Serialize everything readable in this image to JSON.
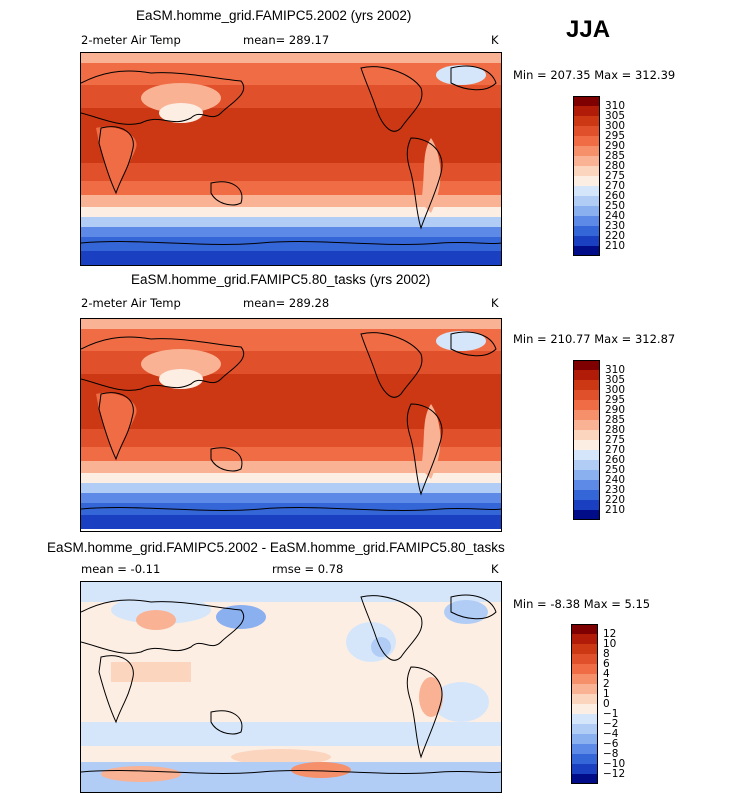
{
  "season": "JJA",
  "chart_data": [
    {
      "type": "heatmap",
      "title": "EaSM.homme_grid.FAMIPC5.2002 (yrs 2002)",
      "variable": "2-meter Air Temp",
      "mean_label": "mean=  289.17",
      "units": "K",
      "minmax_label": "Min = 207.35 Max = 312.39",
      "min": 207.35,
      "max": 312.39,
      "mean": 289.17,
      "colorbar": {
        "levels": [
          "310",
          "305",
          "300",
          "295",
          "290",
          "285",
          "280",
          "275",
          "270",
          "260",
          "250",
          "240",
          "230",
          "220",
          "210"
        ],
        "colors": [
          "#7f0000",
          "#b01c08",
          "#cc3814",
          "#e0502a",
          "#ef6c45",
          "#f5906a",
          "#f9b294",
          "#fcd5bf",
          "#fdeee4",
          "#d6e6fa",
          "#b1cdf6",
          "#8bb0f0",
          "#5c8ae6",
          "#3566d8",
          "#1a3fc0",
          "#000c88"
        ]
      }
    },
    {
      "type": "heatmap",
      "title": "EaSM.homme_grid.FAMIPC5.80_tasks (yrs 2002)",
      "variable": "2-meter Air Temp",
      "mean_label": "mean=  289.28",
      "units": "K",
      "minmax_label": "Min = 210.77 Max = 312.87",
      "min": 210.77,
      "max": 312.87,
      "mean": 289.28,
      "colorbar": {
        "levels": [
          "310",
          "305",
          "300",
          "295",
          "290",
          "285",
          "280",
          "275",
          "270",
          "260",
          "250",
          "240",
          "230",
          "220",
          "210"
        ],
        "colors": [
          "#7f0000",
          "#b01c08",
          "#cc3814",
          "#e0502a",
          "#ef6c45",
          "#f5906a",
          "#f9b294",
          "#fcd5bf",
          "#fdeee4",
          "#d6e6fa",
          "#b1cdf6",
          "#8bb0f0",
          "#5c8ae6",
          "#3566d8",
          "#1a3fc0",
          "#000c88"
        ]
      }
    },
    {
      "type": "heatmap",
      "title": "EaSM.homme_grid.FAMIPC5.2002 - EaSM.homme_grid.FAMIPC5.80_tasks",
      "mean_label": "mean =   -0.11",
      "rmse_label": "rmse =    0.78",
      "units": "K",
      "minmax_label": "Min =  -8.38 Max =    5.15",
      "min": -8.38,
      "max": 5.15,
      "mean": -0.11,
      "rmse": 0.78,
      "colorbar": {
        "levels": [
          "12",
          "10",
          "8",
          "6",
          "4",
          "2",
          "1",
          "0",
          "−1",
          "−2",
          "−4",
          "−6",
          "−8",
          "−10",
          "−12"
        ],
        "colors": [
          "#7f0000",
          "#b01c08",
          "#cc3814",
          "#e0502a",
          "#ef6c45",
          "#f5906a",
          "#f9b294",
          "#fcd5bf",
          "#fdeee4",
          "#d6e6fa",
          "#b1cdf6",
          "#8bb0f0",
          "#5c8ae6",
          "#3566d8",
          "#1a3fc0",
          "#000c88"
        ]
      }
    }
  ]
}
